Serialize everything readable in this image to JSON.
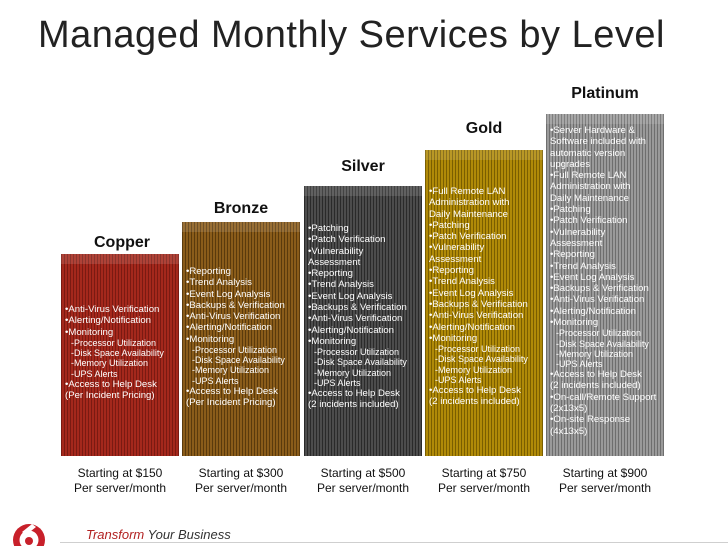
{
  "title": "Managed Monthly Services by Level",
  "tiers": [
    {
      "name": "Copper",
      "price": [
        "Starting at $150",
        "Per server/month"
      ],
      "items": [
        {
          "t": "•Anti-Virus Verification",
          "sub": false
        },
        {
          "t": "•Alerting/Notification",
          "sub": false
        },
        {
          "t": "•Monitoring",
          "sub": false
        },
        {
          "t": "-Processor Utilization",
          "sub": true
        },
        {
          "t": "-Disk Space Availability",
          "sub": true
        },
        {
          "t": "-Memory Utilization",
          "sub": true
        },
        {
          "t": "-UPS Alerts",
          "sub": true
        },
        {
          "t": "•Access to Help Desk",
          "sub": false
        },
        {
          "t": "(Per Incident Pricing)",
          "sub": false
        }
      ]
    },
    {
      "name": "Bronze",
      "price": [
        "Starting at $300",
        "Per server/month"
      ],
      "items": [
        {
          "t": "•Reporting",
          "sub": false
        },
        {
          "t": "•Trend Analysis",
          "sub": false
        },
        {
          "t": "•Event Log Analysis",
          "sub": false
        },
        {
          "t": "•Backups & Verification",
          "sub": false
        },
        {
          "t": "•Anti-Virus Verification",
          "sub": false
        },
        {
          "t": "•Alerting/Notification",
          "sub": false
        },
        {
          "t": "•Monitoring",
          "sub": false
        },
        {
          "t": "-Processor Utilization",
          "sub": true
        },
        {
          "t": "-Disk Space Availability",
          "sub": true
        },
        {
          "t": "-Memory Utilization",
          "sub": true
        },
        {
          "t": "-UPS Alerts",
          "sub": true
        },
        {
          "t": "•Access to Help Desk",
          "sub": false
        },
        {
          "t": "(Per Incident Pricing)",
          "sub": false
        }
      ]
    },
    {
      "name": "Silver",
      "price": [
        "Starting at $500",
        "Per server/month"
      ],
      "items": [
        {
          "t": "•Patching",
          "sub": false
        },
        {
          "t": "•Patch Verification",
          "sub": false
        },
        {
          "t": "•Vulnerability",
          "sub": false
        },
        {
          "t": "Assessment",
          "sub": false
        },
        {
          "t": "•Reporting",
          "sub": false
        },
        {
          "t": "•Trend Analysis",
          "sub": false
        },
        {
          "t": "•Event Log Analysis",
          "sub": false
        },
        {
          "t": "•Backups & Verification",
          "sub": false
        },
        {
          "t": "•Anti-Virus Verification",
          "sub": false
        },
        {
          "t": "•Alerting/Notification",
          "sub": false
        },
        {
          "t": "•Monitoring",
          "sub": false
        },
        {
          "t": "-Processor Utilization",
          "sub": true
        },
        {
          "t": "-Disk Space Availability",
          "sub": true
        },
        {
          "t": "-Memory Utilization",
          "sub": true
        },
        {
          "t": "-UPS Alerts",
          "sub": true
        },
        {
          "t": "•Access to Help Desk",
          "sub": false
        },
        {
          "t": "(2 incidents included)",
          "sub": false
        }
      ]
    },
    {
      "name": "Gold",
      "price": [
        "Starting at $750",
        "Per server/month"
      ],
      "items": [
        {
          "t": "•Full Remote LAN",
          "sub": false
        },
        {
          "t": "Administration with",
          "sub": false
        },
        {
          "t": "Daily Maintenance",
          "sub": false
        },
        {
          "t": "•Patching",
          "sub": false
        },
        {
          "t": "•Patch Verification",
          "sub": false
        },
        {
          "t": "•Vulnerability",
          "sub": false
        },
        {
          "t": "Assessment",
          "sub": false
        },
        {
          "t": "•Reporting",
          "sub": false
        },
        {
          "t": "•Trend Analysis",
          "sub": false
        },
        {
          "t": "•Event Log Analysis",
          "sub": false
        },
        {
          "t": "•Backups & Verification",
          "sub": false
        },
        {
          "t": "•Anti-Virus Verification",
          "sub": false
        },
        {
          "t": "•Alerting/Notification",
          "sub": false
        },
        {
          "t": "•Monitoring",
          "sub": false
        },
        {
          "t": "-Processor Utilization",
          "sub": true
        },
        {
          "t": "-Disk Space Availability",
          "sub": true
        },
        {
          "t": "-Memory Utilization",
          "sub": true
        },
        {
          "t": "-UPS Alerts",
          "sub": true
        },
        {
          "t": "•Access to Help Desk",
          "sub": false
        },
        {
          "t": "(2 incidents included)",
          "sub": false
        }
      ]
    },
    {
      "name": "Platinum",
      "price": [
        "Starting at $900",
        "Per server/month"
      ],
      "items": [
        {
          "t": "•Server Hardware &",
          "sub": false
        },
        {
          "t": "Software included with",
          "sub": false
        },
        {
          "t": "automatic version",
          "sub": false
        },
        {
          "t": "upgrades",
          "sub": false
        },
        {
          "t": "•Full Remote LAN",
          "sub": false
        },
        {
          "t": "Administration with",
          "sub": false
        },
        {
          "t": "Daily Maintenance",
          "sub": false
        },
        {
          "t": "•Patching",
          "sub": false
        },
        {
          "t": "•Patch Verification",
          "sub": false
        },
        {
          "t": "•Vulnerability",
          "sub": false
        },
        {
          "t": "Assessment",
          "sub": false
        },
        {
          "t": "•Reporting",
          "sub": false
        },
        {
          "t": "•Trend Analysis",
          "sub": false
        },
        {
          "t": "•Event Log Analysis",
          "sub": false
        },
        {
          "t": "•Backups & Verification",
          "sub": false
        },
        {
          "t": "•Anti-Virus Verification",
          "sub": false
        },
        {
          "t": "•Alerting/Notification",
          "sub": false
        },
        {
          "t": "•Monitoring",
          "sub": false
        },
        {
          "t": "-Processor Utilization",
          "sub": true
        },
        {
          "t": "-Disk Space Availability",
          "sub": true
        },
        {
          "t": "-Memory Utilization",
          "sub": true
        },
        {
          "t": "-UPS Alerts",
          "sub": true
        },
        {
          "t": "•Access to Help Desk",
          "sub": false
        },
        {
          "t": "(2 incidents included)",
          "sub": false
        },
        {
          "t": "•On-call/Remote Support",
          "sub": false
        },
        {
          "t": "(2x13x5)",
          "sub": false
        },
        {
          "t": "•On-site Response",
          "sub": false
        },
        {
          "t": "(4x13x5)",
          "sub": false
        }
      ]
    }
  ],
  "footer": {
    "tagline_part1": "Transform",
    "tagline_part2": " Your Business",
    "logo_icon": "logo-6-icon",
    "accent_color": "#b22222"
  }
}
